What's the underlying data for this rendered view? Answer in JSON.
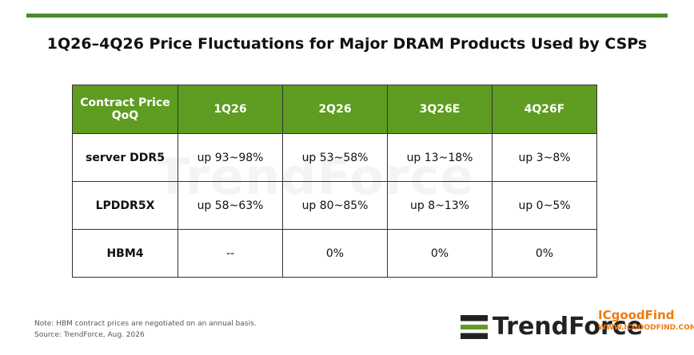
{
  "header": {
    "title": "1Q26–4Q26 Price Fluctuations for Major DRAM Products Used by CSPs"
  },
  "table": {
    "columns": [
      "Contract Price QoQ",
      "1Q26",
      "2Q26",
      "3Q26E",
      "4Q26F"
    ],
    "rows": [
      [
        "server DDR5",
        "up 93~98%",
        "up 53~58%",
        "up 13~18%",
        "up 3~8%"
      ],
      [
        "LPDDR5X",
        "up 58~63%",
        "up 80~85%",
        "up 8~13%",
        "up 0~5%"
      ],
      [
        "HBM4",
        "--",
        "0%",
        "0%",
        "0%"
      ]
    ]
  },
  "watermark": "TrendForce",
  "footer": {
    "note": "Note: HBM contract prices are negotiated on an annual basis.",
    "source": "Source: TrendForce, Aug. 2026",
    "logo": "TrendForce"
  },
  "overlay": {
    "brand": "ICgoodFind",
    "url": "WWW.ICGOODFIND.COM"
  }
}
